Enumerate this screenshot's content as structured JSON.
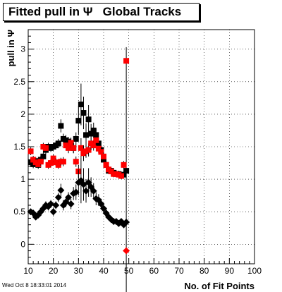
{
  "window": {
    "timestamp": "Wed Oct  8 18:33:01 2014"
  },
  "chart_data": {
    "type": "scatter",
    "title": "Fitted pull in Ψ   Global Tracks",
    "xlabel": "No. of Fit Points",
    "ylabel": "pull in Ψ",
    "xlim": [
      10,
      100
    ],
    "ylim": [
      -0.3,
      3.3
    ],
    "x_ticks": [
      "10",
      "20",
      "30",
      "40",
      "50",
      "60",
      "70",
      "80",
      "90",
      "100"
    ],
    "y_ticks": [
      "0",
      "0.5",
      "1",
      "1.5",
      "2",
      "2.5",
      "3"
    ],
    "grid": true,
    "legend": "none",
    "series": [
      {
        "marker": "square",
        "color": "#000000",
        "x": [
          11,
          12,
          13,
          14,
          15,
          16,
          17,
          18,
          19,
          20,
          21,
          22,
          23,
          24,
          25,
          26,
          27,
          28,
          29,
          30,
          31,
          32,
          33,
          34,
          35,
          36,
          37,
          38,
          39,
          40,
          41,
          42,
          43,
          44,
          45,
          46,
          47,
          48,
          49
        ],
        "y": [
          1.26,
          1.23,
          1.28,
          1.22,
          1.3,
          1.35,
          1.45,
          1.5,
          1.48,
          1.5,
          1.52,
          1.55,
          1.82,
          1.62,
          1.6,
          1.58,
          1.53,
          1.48,
          1.62,
          1.9,
          2.15,
          2.02,
          1.68,
          1.92,
          1.7,
          1.75,
          1.68,
          1.55,
          1.45,
          1.3,
          1.22,
          1.13,
          1.13,
          1.1,
          1.08,
          1.08,
          1.06,
          1.07,
          1.13
        ],
        "err": [
          0.07,
          0.06,
          0.06,
          0.06,
          0.06,
          0.06,
          0.06,
          0.06,
          0.06,
          0.06,
          0.06,
          0.07,
          0.1,
          0.08,
          0.08,
          0.07,
          0.07,
          0.08,
          0.1,
          0.22,
          0.32,
          0.25,
          0.18,
          0.22,
          0.15,
          0.12,
          0.1,
          0.08,
          0.07,
          0.07,
          0.06,
          0.05,
          0.05,
          0.05,
          0.05,
          0.05,
          0.05,
          0.05,
          1.9
        ]
      },
      {
        "marker": "square",
        "color": "#ff0000",
        "x": [
          11,
          12,
          13,
          14,
          15,
          16,
          17,
          18,
          19,
          20,
          21,
          22,
          23,
          24,
          25,
          26,
          27,
          28,
          29,
          30,
          31,
          32,
          33,
          34,
          35,
          36,
          37,
          38,
          39,
          40,
          41,
          42,
          43,
          44,
          45,
          46,
          47,
          48,
          49
        ],
        "y": [
          1.43,
          1.3,
          1.26,
          1.23,
          1.27,
          1.5,
          1.48,
          1.22,
          1.25,
          1.32,
          1.26,
          1.22,
          1.27,
          1.27,
          1.52,
          1.48,
          1.56,
          1.48,
          1.27,
          1.12,
          1.48,
          1.4,
          1.43,
          1.45,
          1.55,
          1.52,
          1.6,
          1.47,
          1.42,
          1.35,
          1.22,
          1.15,
          1.12,
          1.08,
          1.08,
          1.07,
          1.05,
          1.22,
          2.82
        ],
        "err": [
          0.06,
          0.06,
          0.06,
          0.06,
          0.06,
          0.06,
          0.06,
          0.06,
          0.06,
          0.06,
          0.06,
          0.06,
          0.06,
          0.07,
          0.08,
          0.08,
          0.08,
          0.08,
          0.08,
          0.1,
          0.15,
          0.12,
          0.1,
          0.1,
          0.1,
          0.08,
          0.08,
          0.07,
          0.07,
          0.06,
          0.06,
          0.05,
          0.05,
          0.05,
          0.05,
          0.05,
          0.05,
          0.06,
          0
        ]
      },
      {
        "marker": "diamond",
        "color": "#000000",
        "x": [
          11,
          12,
          13,
          14,
          15,
          16,
          17,
          18,
          19,
          20,
          21,
          22,
          23,
          24,
          25,
          26,
          27,
          28,
          29,
          30,
          31,
          32,
          33,
          34,
          35,
          36,
          37,
          38,
          39,
          40,
          41,
          42,
          43,
          44,
          45,
          46,
          47,
          48,
          49
        ],
        "y": [
          0.5,
          0.48,
          0.42,
          0.45,
          0.5,
          0.55,
          0.6,
          0.58,
          0.62,
          0.5,
          0.6,
          0.72,
          0.83,
          0.6,
          0.65,
          0.72,
          0.62,
          0.78,
          0.8,
          0.95,
          0.98,
          0.92,
          0.82,
          0.95,
          0.88,
          0.82,
          0.7,
          0.68,
          0.62,
          0.55,
          0.48,
          0.42,
          0.38,
          0.35,
          0.35,
          0.32,
          0.35,
          0.3,
          0.34
        ],
        "err": [
          0.05,
          0.05,
          0.05,
          0.05,
          0.05,
          0.05,
          0.06,
          0.06,
          0.06,
          0.06,
          0.06,
          0.07,
          0.1,
          0.08,
          0.08,
          0.08,
          0.08,
          0.1,
          0.12,
          0.2,
          0.35,
          0.25,
          0.18,
          0.22,
          0.15,
          0.12,
          0.1,
          0.09,
          0.08,
          0.07,
          0.06,
          0.05,
          0.05,
          0.05,
          0.05,
          0.05,
          0.05,
          0.05,
          0.05
        ]
      },
      {
        "marker": "diamond",
        "color": "#ff0000",
        "x": [
          49
        ],
        "y": [
          -0.1
        ],
        "err": [
          0
        ]
      }
    ]
  }
}
